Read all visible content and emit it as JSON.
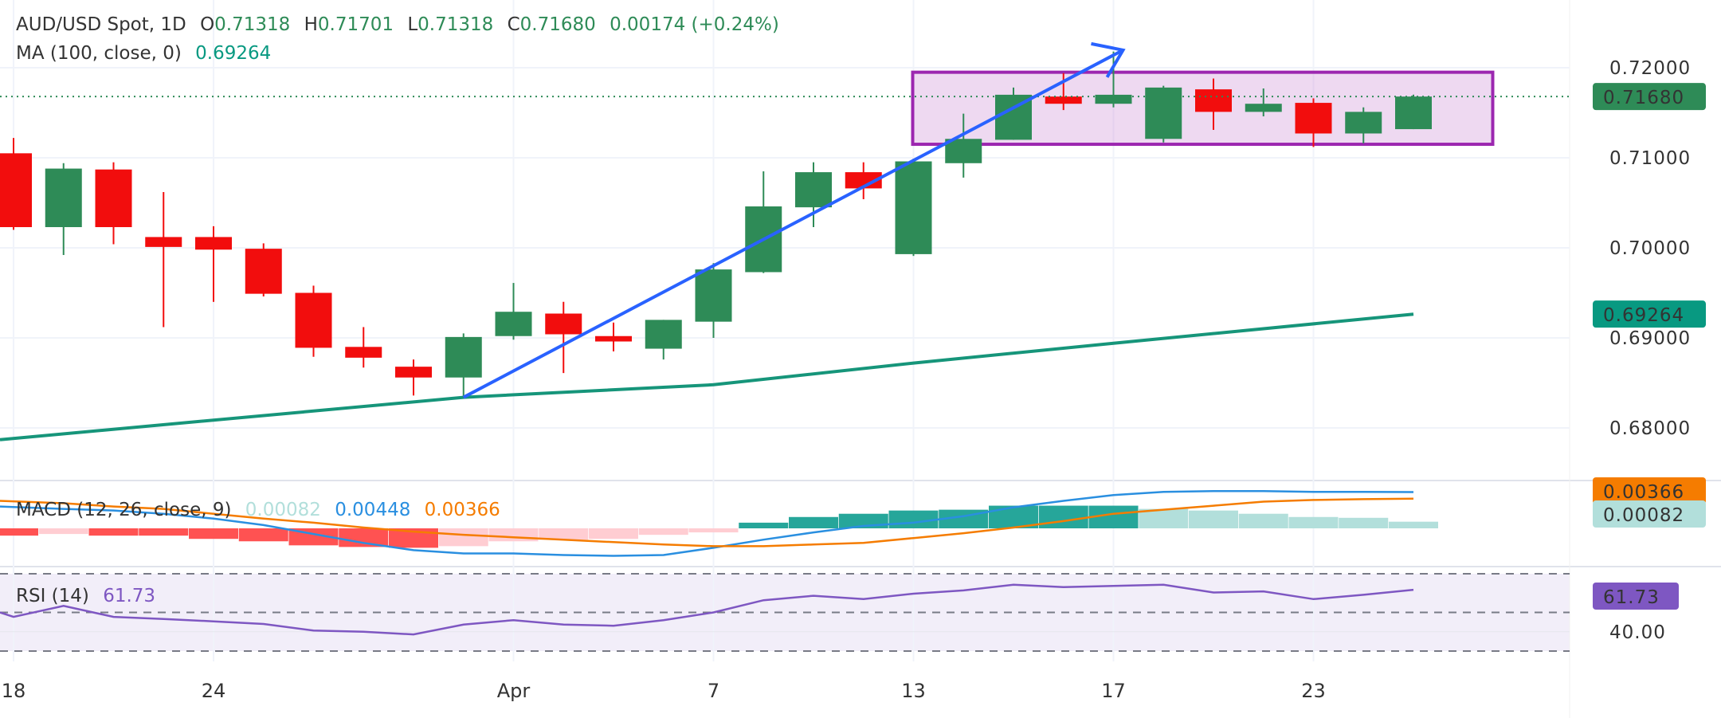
{
  "header": {
    "symbol": "AUD/USD Spot, 1D",
    "o_label": "O",
    "o": "0.71318",
    "h_label": "H",
    "h": "0.71701",
    "l_label": "L",
    "l": "0.71318",
    "c_label": "C",
    "c": "0.71680",
    "change": "0.00174 (+0.24%)"
  },
  "ma_legend": {
    "label": "MA (100, close, 0)",
    "value": "0.69264"
  },
  "macd_legend": {
    "label": "MACD (12, 26, close, 9)",
    "hist": "0.00082",
    "macd": "0.00448",
    "signal": "0.00366"
  },
  "rsi_legend": {
    "label": "RSI (14)",
    "value": "61.73"
  },
  "price_axis": {
    "ticks": [
      "0.72000",
      "0.71000",
      "0.70000",
      "0.69000",
      "0.68000"
    ],
    "last_label": "0.71680",
    "ma_label": "0.69264"
  },
  "macd_axis": {
    "signal_label": "0.00366",
    "hist_label": "0.00082"
  },
  "rsi_axis": {
    "value_label": "61.73",
    "tick": "40.00"
  },
  "time_axis": {
    "labels": [
      {
        "text": "18",
        "idx": 0
      },
      {
        "text": "24",
        "idx": 4
      },
      {
        "text": "Apr",
        "idx": 10
      },
      {
        "text": "7",
        "idx": 14
      },
      {
        "text": "13",
        "idx": 18
      },
      {
        "text": "17",
        "idx": 22
      },
      {
        "text": "23",
        "idx": 26
      }
    ]
  },
  "colors": {
    "up": "#2e8b57",
    "down": "#f20d0d",
    "ma": "#16957a",
    "macd": "#2a8fe0",
    "signal": "#f57c00",
    "rsi": "#7e57c2",
    "box": "#9c27b0",
    "arrow": "#2962ff"
  },
  "chart_data": {
    "type": "candlestick",
    "title": "AUD/USD Spot, 1D",
    "ylim": [
      0.675,
      0.7245
    ],
    "ohlc": [
      [
        0.7105,
        0.7122,
        0.702,
        0.7023
      ],
      [
        0.7023,
        0.7094,
        0.6992,
        0.7088
      ],
      [
        0.7087,
        0.7095,
        0.7004,
        0.7023
      ],
      [
        0.7012,
        0.7062,
        0.6912,
        0.7001
      ],
      [
        0.7012,
        0.7024,
        0.694,
        0.6998
      ],
      [
        0.6999,
        0.7005,
        0.6946,
        0.6949
      ],
      [
        0.695,
        0.6958,
        0.6879,
        0.6889
      ],
      [
        0.689,
        0.6912,
        0.6867,
        0.6878
      ],
      [
        0.6868,
        0.6876,
        0.6836,
        0.6856
      ],
      [
        0.6856,
        0.6905,
        0.6834,
        0.6901
      ],
      [
        0.6902,
        0.6961,
        0.6898,
        0.6929
      ],
      [
        0.6927,
        0.694,
        0.6861,
        0.6904
      ],
      [
        0.6902,
        0.6917,
        0.6885,
        0.6896
      ],
      [
        0.6888,
        0.692,
        0.6876,
        0.692
      ],
      [
        0.6918,
        0.6983,
        0.69,
        0.6976
      ],
      [
        0.6973,
        0.7085,
        0.6972,
        0.7046
      ],
      [
        0.7045,
        0.7095,
        0.7023,
        0.7084
      ],
      [
        0.7084,
        0.7095,
        0.7054,
        0.7066
      ],
      [
        0.6993,
        0.7099,
        0.6991,
        0.7096
      ],
      [
        0.7094,
        0.7149,
        0.7078,
        0.7121
      ],
      [
        0.712,
        0.7178,
        0.712,
        0.717
      ],
      [
        0.7168,
        0.7194,
        0.7153,
        0.716
      ],
      [
        0.716,
        0.7218,
        0.7156,
        0.717
      ],
      [
        0.7121,
        0.718,
        0.7117,
        0.7178
      ],
      [
        0.7176,
        0.7188,
        0.7131,
        0.7151
      ],
      [
        0.7151,
        0.7177,
        0.7146,
        0.716
      ],
      [
        0.7161,
        0.7166,
        0.7112,
        0.7127
      ],
      [
        0.7127,
        0.7156,
        0.7116,
        0.7151
      ],
      [
        0.71318,
        0.71701,
        0.71318,
        0.7168
      ]
    ],
    "ma100": [
      [
        0,
        0.6787
      ],
      [
        9,
        0.6834
      ],
      [
        14,
        0.6848
      ],
      [
        18,
        0.6872
      ],
      [
        22,
        0.6894
      ],
      [
        28,
        0.69264
      ]
    ],
    "macd": [
      0.0027,
      0.0024,
      0.0022,
      0.0018,
      0.0012,
      0.0004,
      -0.0007,
      -0.0018,
      -0.0027,
      -0.0031,
      -0.0031,
      -0.0033,
      -0.0034,
      -0.0033,
      -0.0024,
      -0.0014,
      -0.0005,
      0.0003,
      0.0007,
      0.0015,
      0.0026,
      0.0034,
      0.0041,
      0.0045,
      0.0046,
      0.0046,
      0.0045,
      0.0045,
      0.00448
    ],
    "signal": [
      0.0034,
      0.0031,
      0.0027,
      0.0024,
      0.0018,
      0.0012,
      0.0007,
      0.0001,
      -0.0004,
      -0.0008,
      -0.0011,
      -0.0014,
      -0.0017,
      -0.002,
      -0.0022,
      -0.0022,
      -0.002,
      -0.0018,
      -0.0012,
      -0.0006,
      0.0001,
      0.0009,
      0.0018,
      0.0023,
      0.0028,
      0.0033,
      0.0035,
      0.0036,
      0.00366
    ],
    "histogram": [
      -0.0009,
      -0.0007,
      -0.0009,
      -0.0009,
      -0.0013,
      -0.0016,
      -0.0021,
      -0.0023,
      -0.0024,
      -0.0022,
      -0.0016,
      -0.0014,
      -0.0013,
      -0.0008,
      -0.0005,
      0.0007,
      0.0014,
      0.0018,
      0.0022,
      0.0023,
      0.0028,
      0.0028,
      0.0028,
      0.0024,
      0.0022,
      0.0018,
      0.0014,
      0.0013,
      0.00082
    ],
    "rsi": [
      47.7,
      53.4,
      47.7,
      46.6,
      45.4,
      44,
      40.6,
      40,
      38.6,
      43.7,
      46,
      43.7,
      43.1,
      46,
      50,
      56.3,
      58.6,
      56.9,
      59.7,
      61.4,
      64.3,
      63.1,
      63.7,
      64.3,
      60.3,
      60.9,
      56.9,
      59.1,
      61.73
    ],
    "rsi_levels": [
      70,
      50,
      30
    ],
    "annotations": {
      "arrow_from": [
        9,
        0.6834
      ],
      "arrow_to": [
        22,
        0.7224
      ],
      "box_from": [
        18,
        0.7195
      ],
      "box_to": [
        30,
        0.7115
      ]
    }
  }
}
